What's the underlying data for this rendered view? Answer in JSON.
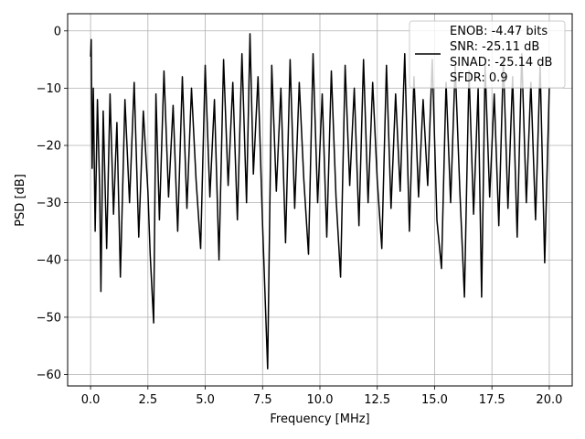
{
  "chart_data": {
    "type": "line",
    "xlabel": "Frequency [MHz]",
    "ylabel": "PSD [dB]",
    "xlim": [
      -1,
      21
    ],
    "ylim": [
      -62,
      3
    ],
    "xticks": [
      0.0,
      2.5,
      5.0,
      7.5,
      10.0,
      12.5,
      15.0,
      17.5,
      20.0
    ],
    "xtick_labels": [
      "0.0",
      "2.5",
      "5.0",
      "7.5",
      "10.0",
      "12.5",
      "15.0",
      "17.5",
      "20.0"
    ],
    "yticks": [
      0,
      -10,
      -20,
      -30,
      -40,
      -50,
      -60
    ],
    "ytick_labels": [
      "0",
      "−10",
      "−20",
      "−30",
      "−40",
      "−50",
      "−60"
    ],
    "grid": true,
    "legend": {
      "placement": "top-right",
      "lines": [
        "ENOB: -4.47 bits",
        "SNR: -25.11 dB",
        "SINAD: -25.14 dB",
        "SFDR: 0.9"
      ]
    },
    "series": [
      {
        "color": "#000000",
        "x": [
          0.0,
          0.03,
          0.07,
          0.12,
          0.2,
          0.3,
          0.4,
          0.45,
          0.55,
          0.7,
          0.85,
          1.0,
          1.15,
          1.3,
          1.5,
          1.7,
          1.9,
          2.1,
          2.3,
          2.5,
          2.6,
          2.75,
          2.85,
          3.0,
          3.2,
          3.4,
          3.6,
          3.8,
          4.0,
          4.2,
          4.4,
          4.6,
          4.8,
          5.0,
          5.2,
          5.4,
          5.6,
          5.8,
          6.0,
          6.2,
          6.4,
          6.6,
          6.8,
          6.95,
          7.1,
          7.3,
          7.5,
          7.72,
          7.9,
          8.1,
          8.3,
          8.5,
          8.7,
          8.9,
          9.1,
          9.3,
          9.5,
          9.7,
          9.9,
          10.1,
          10.3,
          10.5,
          10.7,
          10.9,
          11.1,
          11.3,
          11.5,
          11.7,
          11.9,
          12.1,
          12.3,
          12.5,
          12.7,
          12.9,
          13.1,
          13.3,
          13.5,
          13.7,
          13.9,
          14.1,
          14.3,
          14.5,
          14.7,
          14.9,
          15.1,
          15.3,
          15.5,
          15.7,
          15.9,
          16.1,
          16.3,
          16.5,
          16.7,
          16.9,
          17.05,
          17.2,
          17.4,
          17.6,
          17.8,
          18.0,
          18.2,
          18.4,
          18.6,
          18.8,
          19.0,
          19.2,
          19.4,
          19.6,
          19.8,
          20.0
        ],
        "y": [
          -4.5,
          -1.5,
          -24,
          -10,
          -35,
          -12,
          -28,
          -45.5,
          -14,
          -38,
          -11,
          -32,
          -16,
          -43,
          -12,
          -30,
          -9,
          -36,
          -14,
          -28,
          -39,
          -51,
          -11,
          -33,
          -7,
          -29,
          -13,
          -35,
          -8,
          -31,
          -10,
          -26,
          -38,
          -6,
          -29,
          -12,
          -40,
          -5,
          -27,
          -9,
          -33,
          -4,
          -30,
          -0.5,
          -25,
          -8,
          -34,
          -59,
          -6,
          -28,
          -10,
          -37,
          -5,
          -31,
          -9,
          -26,
          -39,
          -4,
          -30,
          -11,
          -36,
          -7,
          -29,
          -43,
          -6,
          -27,
          -10,
          -34,
          -5,
          -30,
          -9,
          -26,
          -38,
          -6,
          -31,
          -11,
          -28,
          -4,
          -35,
          -8,
          -29,
          -12,
          -27,
          -5,
          -33,
          -41.5,
          -9,
          -30,
          -6,
          -28,
          -46.5,
          -7,
          -32,
          -10,
          -46.5,
          -6,
          -29,
          -11,
          -34,
          -5,
          -31,
          -8,
          -36,
          -4,
          -30,
          -9,
          -33,
          -6,
          -40.5,
          -10
        ]
      }
    ]
  }
}
